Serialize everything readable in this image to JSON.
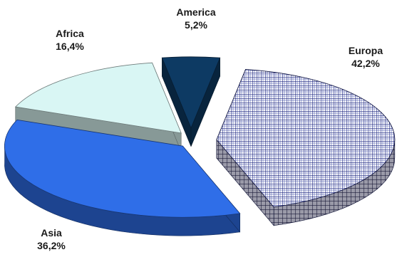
{
  "chart_data": {
    "type": "pie",
    "title": "",
    "is_3d": true,
    "exploded": true,
    "legend": "none",
    "slices": [
      {
        "name": "America",
        "value": 5.2,
        "value_label": "5,2%",
        "color": "#0d3a63",
        "pattern": "none"
      },
      {
        "name": "Europa",
        "value": 42.2,
        "value_label": "42,2%",
        "color": "#1a237e",
        "pattern": "crosshatch"
      },
      {
        "name": "Asia",
        "value": 36.2,
        "value_label": "36,2%",
        "color": "#2f6ee8",
        "pattern": "none"
      },
      {
        "name": "Africa",
        "value": 16.4,
        "value_label": "16,4%",
        "color": "#d9f6f4",
        "pattern": "none"
      }
    ]
  }
}
